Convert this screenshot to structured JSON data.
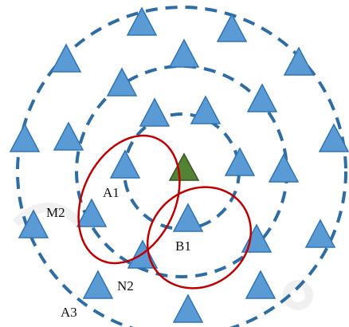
{
  "labels": {
    "a1": "A1",
    "b1": "B1",
    "m2": "M2",
    "n2": "N2",
    "a3": "A3"
  },
  "colors": {
    "node_fill": "#5b9bd5",
    "node_stroke": "#2e75b6",
    "target_fill": "#548235",
    "target_stroke": "#375623",
    "ring": "#2e6da4",
    "cluster_ellipse": "#c00000"
  },
  "icons": {
    "node": "blue-triangle-icon",
    "target": "green-triangle-icon"
  }
}
